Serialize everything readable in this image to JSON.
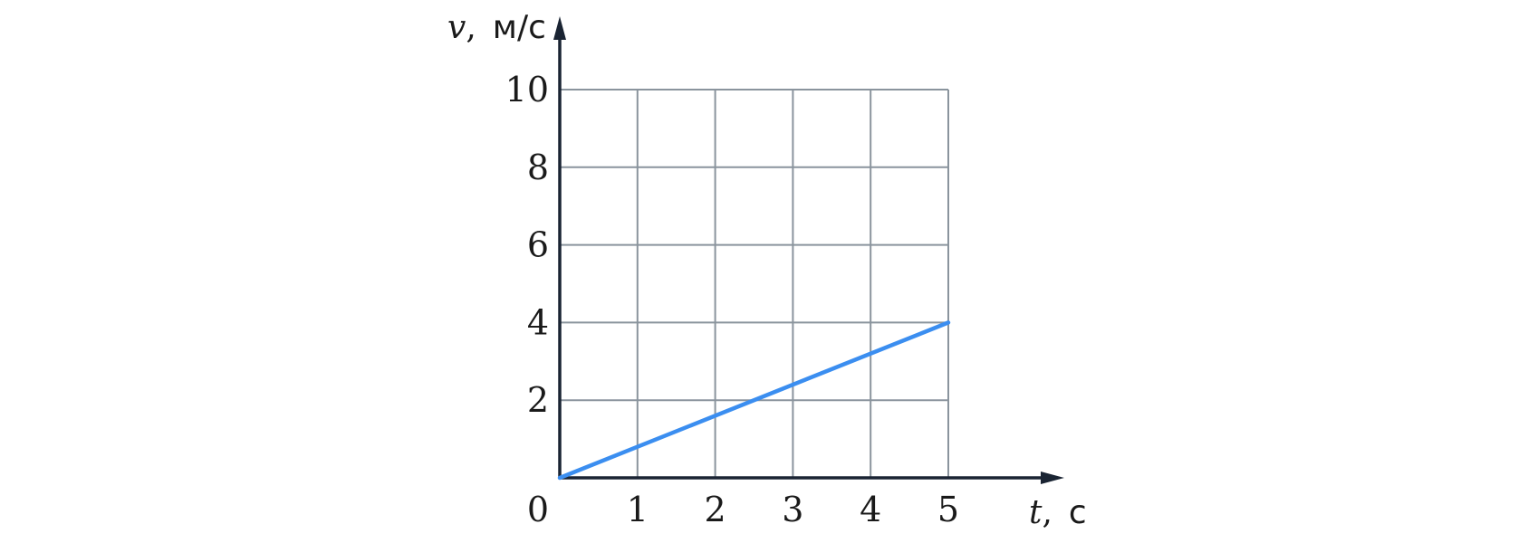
{
  "chart_data": {
    "type": "line",
    "x_label_var": "t",
    "x_label_unit": "с",
    "y_label_var": "v",
    "y_label_unit": "м/с",
    "xlim": [
      0,
      5
    ],
    "ylim": [
      0,
      10
    ],
    "x_ticks": [
      "1",
      "2",
      "3",
      "4",
      "5"
    ],
    "y_ticks": [
      "2",
      "4",
      "6",
      "8",
      "10"
    ],
    "origin_label": "0",
    "grid": true,
    "series": [
      {
        "x": [
          0,
          5
        ],
        "y": [
          0,
          4
        ],
        "color": "#3b8ef0"
      }
    ],
    "colors": {
      "grid": "#8a949d",
      "axis": "#1a2433"
    }
  }
}
